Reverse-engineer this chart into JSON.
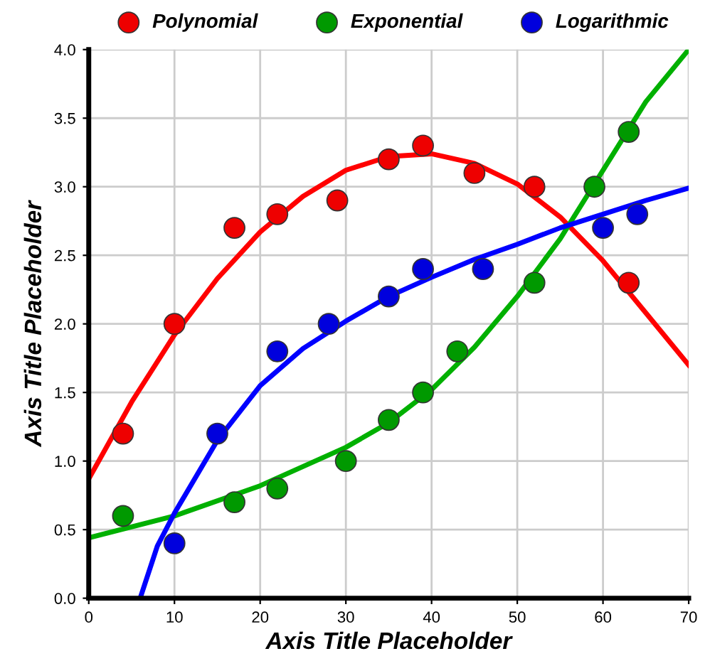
{
  "chart_data": {
    "type": "scatter",
    "xlabel": "Axis Title Placeholder",
    "ylabel": "Axis Title Placeholder",
    "xlim": [
      0,
      70
    ],
    "xticks": [
      0,
      10,
      20,
      30,
      40,
      50,
      60,
      70
    ],
    "ylim": [
      0,
      4
    ],
    "yticks": [
      {
        "value": 0,
        "label": "0.0"
      },
      {
        "value": 0.5,
        "label": "0.5"
      },
      {
        "value": 1,
        "label": "1.0"
      },
      {
        "value": 1.5,
        "label": "1.5"
      },
      {
        "value": 2,
        "label": "2.0"
      },
      {
        "value": 2.5,
        "label": "2.5"
      },
      {
        "value": 3,
        "label": "3.0"
      },
      {
        "value": 3.5,
        "label": "3.5"
      },
      {
        "value": 4,
        "label": "4.0"
      }
    ],
    "grid": true,
    "legend": "top",
    "marker": "circle",
    "series": [
      {
        "type": "line",
        "marker": "none",
        "color": "#ff0000",
        "x": [
          0,
          5,
          10,
          15,
          20,
          25,
          30,
          35,
          40,
          45,
          50,
          55,
          60,
          65,
          70
        ],
        "values": [
          0.87,
          1.43,
          1.92,
          2.33,
          2.67,
          2.93,
          3.12,
          3.22,
          3.24,
          3.17,
          3.02,
          2.78,
          2.46,
          2.08,
          1.7
        ]
      },
      {
        "type": "line",
        "marker": "none",
        "color": "#00b000",
        "x": [
          0,
          10,
          20,
          30,
          35,
          40,
          45,
          50,
          55,
          60,
          65,
          70
        ],
        "values": [
          0.44,
          0.6,
          0.82,
          1.1,
          1.28,
          1.52,
          1.83,
          2.2,
          2.62,
          3.12,
          3.62,
          4.0
        ]
      },
      {
        "type": "line",
        "marker": "none",
        "color": "#0000ff",
        "x": [
          6,
          8,
          10,
          15,
          20,
          25,
          30,
          35,
          40,
          45,
          50,
          55,
          60,
          65,
          70
        ],
        "values": [
          0,
          0.38,
          0.62,
          1.15,
          1.55,
          1.82,
          2.02,
          2.2,
          2.34,
          2.47,
          2.58,
          2.7,
          2.8,
          2.9,
          2.99
        ]
      },
      {
        "name": "Polynomial",
        "color": "#ee0000",
        "x": [
          4,
          10,
          17,
          22,
          29,
          35,
          39,
          45,
          52,
          63
        ],
        "values": [
          1.2,
          2.0,
          2.7,
          2.8,
          2.9,
          3.2,
          3.3,
          3.1,
          3.0,
          2.3
        ]
      },
      {
        "name": "Exponential",
        "color": "#009900",
        "x": [
          4,
          17,
          22,
          30,
          35,
          39,
          43,
          52,
          59,
          63
        ],
        "values": [
          0.6,
          0.7,
          0.8,
          1.0,
          1.3,
          1.5,
          1.8,
          2.3,
          3.0,
          3.4
        ]
      },
      {
        "name": "Logarithmic",
        "color": "#0000dd",
        "x": [
          10,
          15,
          22,
          28,
          35,
          39,
          46,
          60,
          64
        ],
        "values": [
          0.4,
          1.2,
          1.8,
          2.0,
          2.2,
          2.4,
          2.4,
          2.7,
          2.8
        ]
      }
    ]
  }
}
